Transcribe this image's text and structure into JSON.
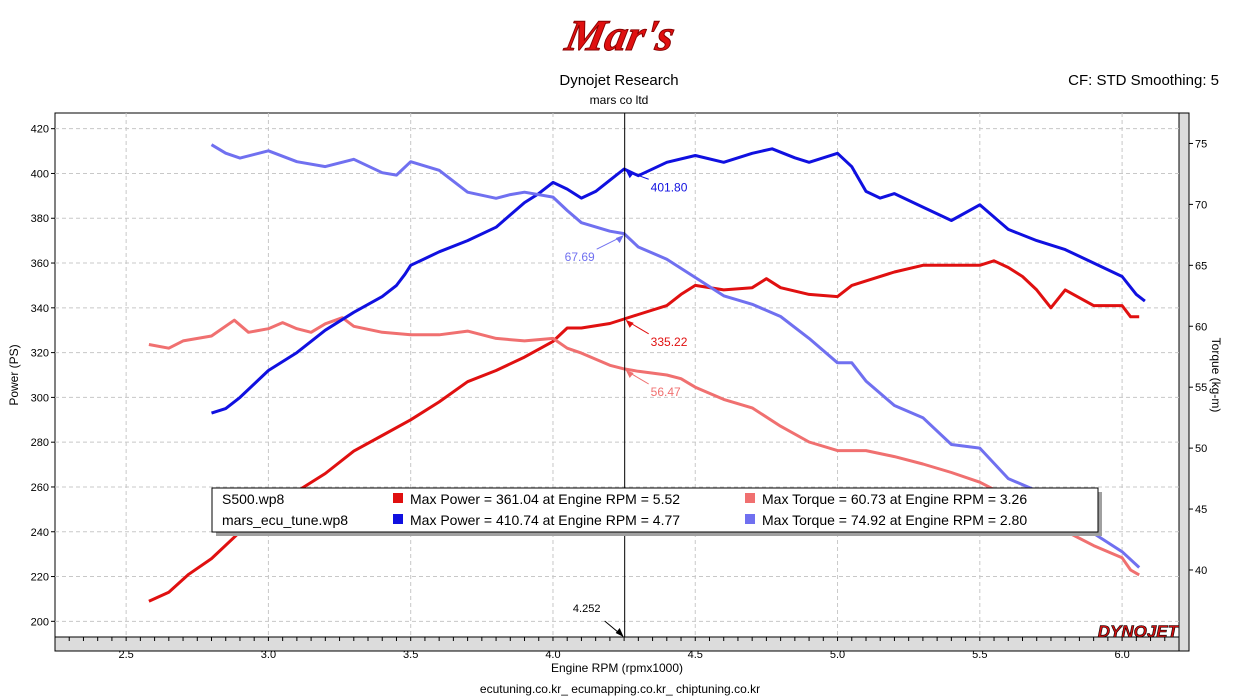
{
  "logo": {
    "text": "Mar's",
    "color": "#e01010"
  },
  "header": {
    "title": "Dynojet Research",
    "subtitle": "mars co ltd",
    "right_info": "CF: STD Smoothing: 5"
  },
  "footer": {
    "text": "ecutuning.co.kr_ ecumapping.co.kr_ chiptuning.co.kr"
  },
  "brand": {
    "text": "DYNOJET"
  },
  "colors": {
    "power_s500": "#e01010",
    "torque_s500": "#f07070",
    "power_mars": "#1010e0",
    "torque_mars": "#7070f0",
    "cursor": "#000000",
    "grid": "#c8c8c8"
  },
  "cursor": {
    "x": 4.252,
    "label": "4.252",
    "readouts": [
      {
        "series": "mars_power",
        "text": "401.80"
      },
      {
        "series": "mars_torque",
        "text": "67.69"
      },
      {
        "series": "s500_power",
        "text": "335.22"
      },
      {
        "series": "s500_torque",
        "text": "56.47"
      }
    ]
  },
  "legend": {
    "rows": [
      {
        "file": "S500.wp8",
        "power_text": "Max Power = 361.04 at Engine RPM = 5.52",
        "torque_text": "Max Torque = 60.73 at Engine RPM = 3.26",
        "power_color": "#e01010",
        "torque_color": "#f07070"
      },
      {
        "file": "mars_ecu_tune.wp8",
        "power_text": "Max Power = 410.74 at Engine RPM = 4.77",
        "torque_text": "Max Torque = 74.92 at Engine RPM = 2.80",
        "power_color": "#1010e0",
        "torque_color": "#7070f0"
      }
    ]
  },
  "chart_data": {
    "type": "line",
    "title": "Dynojet Research",
    "subtitle": "mars co ltd",
    "xlabel": "Engine RPM (rpmx1000)",
    "ylabel": "Power (PS)",
    "y2label": "Torque (kg-m)",
    "xlim": [
      2.25,
      6.2
    ],
    "ylim": [
      193,
      427
    ],
    "y2lim": [
      34.5,
      77.5
    ],
    "xticks": [
      "2.5",
      "3.0",
      "3.5",
      "4.0",
      "4.5",
      "5.0",
      "5.5",
      "6.0"
    ],
    "yticks": [
      "200",
      "220",
      "240",
      "260",
      "280",
      "300",
      "320",
      "340",
      "360",
      "380",
      "400",
      "420"
    ],
    "y2ticks": [
      "40",
      "45",
      "50",
      "55",
      "60",
      "65",
      "70",
      "75"
    ],
    "grid": true,
    "series": [
      {
        "name": "S500.wp8",
        "quantity": "power",
        "axis": "left",
        "x": [
          2.58,
          2.65,
          2.72,
          2.8,
          2.9,
          3.0,
          3.1,
          3.2,
          3.3,
          3.4,
          3.5,
          3.6,
          3.7,
          3.8,
          3.9,
          4.0,
          4.05,
          4.1,
          4.2,
          4.25,
          4.3,
          4.4,
          4.45,
          4.5,
          4.6,
          4.7,
          4.75,
          4.8,
          4.9,
          5.0,
          5.05,
          5.1,
          5.2,
          5.3,
          5.4,
          5.5,
          5.55,
          5.6,
          5.65,
          5.7,
          5.75,
          5.8,
          5.9,
          6.0,
          6.03,
          6.06
        ],
        "y": [
          209,
          213,
          221,
          228,
          240,
          250,
          258,
          266,
          276,
          283,
          290,
          298,
          307,
          312,
          318,
          325,
          331,
          331,
          333,
          335,
          337,
          341,
          346,
          350,
          348,
          349,
          353,
          349,
          346,
          345,
          350,
          352,
          356,
          359,
          359,
          359,
          361,
          358,
          354,
          348,
          340,
          348,
          341,
          341,
          336,
          336
        ]
      },
      {
        "name": "S500.wp8",
        "quantity": "torque",
        "axis": "right",
        "x": [
          2.58,
          2.65,
          2.7,
          2.8,
          2.88,
          2.93,
          3.0,
          3.05,
          3.1,
          3.15,
          3.2,
          3.26,
          3.3,
          3.4,
          3.5,
          3.6,
          3.7,
          3.8,
          3.9,
          4.0,
          4.05,
          4.1,
          4.2,
          4.25,
          4.3,
          4.4,
          4.45,
          4.5,
          4.6,
          4.7,
          4.8,
          4.9,
          5.0,
          5.1,
          5.2,
          5.3,
          5.4,
          5.5,
          5.6,
          5.7,
          5.8,
          5.9,
          6.0,
          6.03,
          6.06
        ],
        "y": [
          58.5,
          58.2,
          58.8,
          59.2,
          60.5,
          59.5,
          59.8,
          60.3,
          59.8,
          59.5,
          60.2,
          60.7,
          60.0,
          59.5,
          59.3,
          59.3,
          59.6,
          59.0,
          58.8,
          59.0,
          58.2,
          57.8,
          56.8,
          56.5,
          56.3,
          56.0,
          55.7,
          55.0,
          54.0,
          53.3,
          51.8,
          50.5,
          49.8,
          49.8,
          49.3,
          48.7,
          48.0,
          47.2,
          46.0,
          44.5,
          43.2,
          42.0,
          41.0,
          40.0,
          39.6
        ]
      },
      {
        "name": "mars_ecu_tune.wp8",
        "quantity": "power",
        "axis": "left",
        "x": [
          2.8,
          2.85,
          2.9,
          3.0,
          3.1,
          3.2,
          3.3,
          3.4,
          3.45,
          3.48,
          3.5,
          3.55,
          3.6,
          3.7,
          3.8,
          3.9,
          3.95,
          4.0,
          4.05,
          4.1,
          4.15,
          4.2,
          4.25,
          4.3,
          4.4,
          4.5,
          4.6,
          4.7,
          4.77,
          4.85,
          4.9,
          5.0,
          5.05,
          5.1,
          5.15,
          5.2,
          5.3,
          5.4,
          5.5,
          5.6,
          5.7,
          5.8,
          5.9,
          6.0,
          6.05,
          6.08
        ],
        "y": [
          293,
          295,
          300,
          312,
          320,
          330,
          338,
          345,
          350,
          355,
          359,
          362,
          365,
          370,
          376,
          387,
          391,
          396,
          393,
          389,
          392,
          397,
          402,
          399,
          405,
          408,
          405,
          409,
          411,
          407,
          405,
          409,
          403,
          392,
          389,
          391,
          385,
          379,
          386,
          375,
          370,
          366,
          360,
          354,
          346,
          343
        ]
      },
      {
        "name": "mars_ecu_tune.wp8",
        "quantity": "torque",
        "axis": "right",
        "x": [
          2.8,
          2.85,
          2.9,
          3.0,
          3.1,
          3.2,
          3.3,
          3.4,
          3.45,
          3.5,
          3.6,
          3.7,
          3.8,
          3.85,
          3.9,
          4.0,
          4.05,
          4.1,
          4.2,
          4.25,
          4.3,
          4.4,
          4.5,
          4.6,
          4.7,
          4.8,
          4.9,
          5.0,
          5.05,
          5.1,
          5.2,
          5.3,
          5.4,
          5.5,
          5.6,
          5.7,
          5.8,
          5.9,
          6.0,
          6.06
        ],
        "y": [
          74.9,
          74.2,
          73.8,
          74.4,
          73.5,
          73.1,
          73.7,
          72.6,
          72.4,
          73.5,
          72.8,
          71.0,
          70.5,
          70.8,
          71.0,
          70.6,
          69.5,
          68.5,
          67.8,
          67.6,
          66.5,
          65.5,
          64.0,
          62.5,
          61.8,
          60.8,
          59.0,
          57.0,
          57.0,
          55.5,
          53.5,
          52.5,
          50.3,
          50.0,
          47.5,
          46.5,
          44.5,
          43.0,
          41.5,
          40.2
        ]
      }
    ]
  }
}
